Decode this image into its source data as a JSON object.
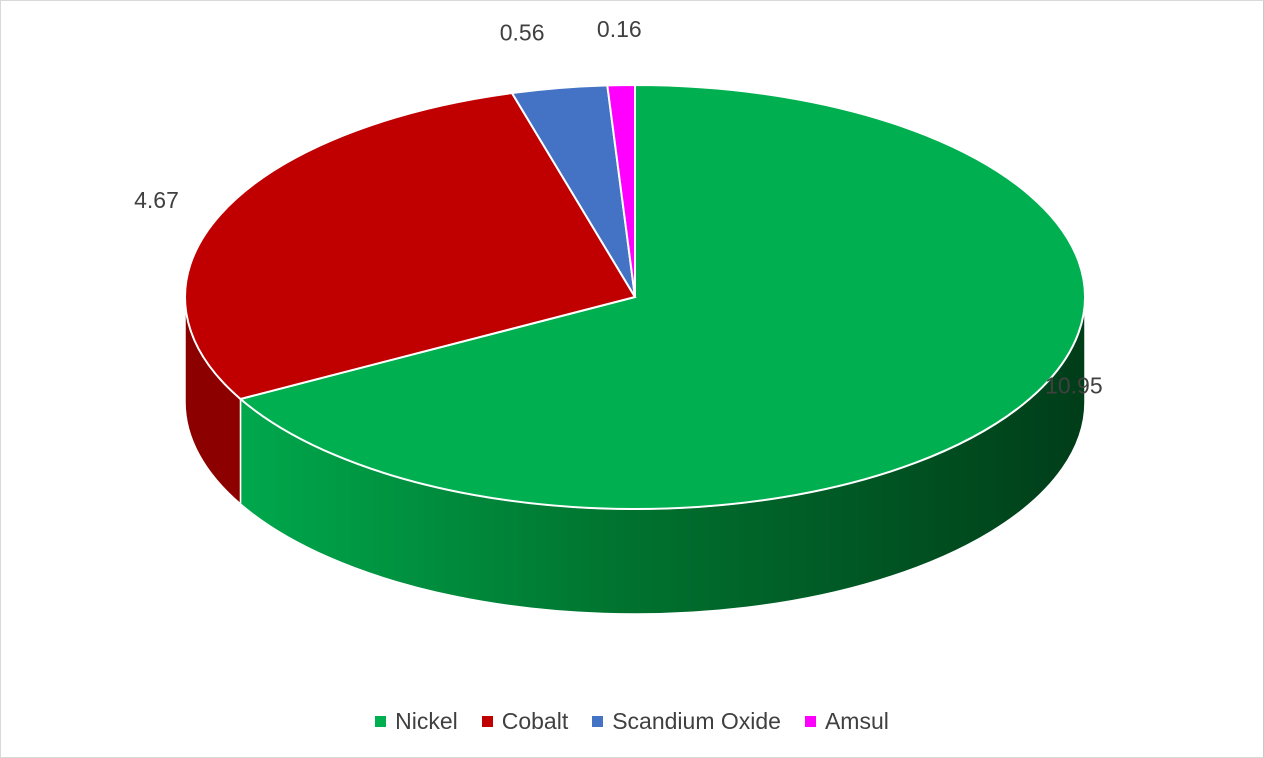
{
  "chart_data": {
    "type": "pie",
    "title": "",
    "legend_position": "bottom",
    "slices": [
      {
        "name": "Nickel",
        "value": 10.95,
        "label": "10.95",
        "color": "#00B050",
        "side_color": "#00863c"
      },
      {
        "name": "Cobalt",
        "value": 4.67,
        "label": "4.67",
        "color": "#C00000",
        "side_color": "#8c0000"
      },
      {
        "name": "Scandium Oxide",
        "value": 0.56,
        "label": "0.56",
        "color": "#4472C4",
        "side_color": "#2f5597"
      },
      {
        "name": "Amsul",
        "value": 0.16,
        "label": "0.16",
        "color": "#FF00FF",
        "side_color": "#b000b0"
      }
    ]
  }
}
